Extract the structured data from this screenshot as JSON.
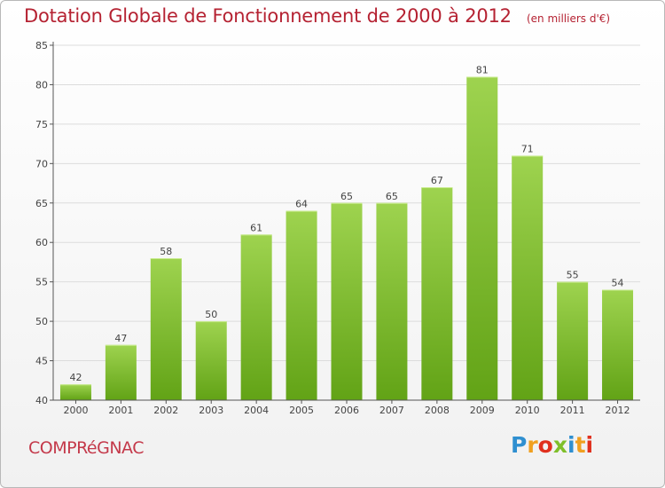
{
  "header": {
    "title": "Dotation Globale de Fonctionnement de 2000 à 2012",
    "unit": "(en milliers d'€)"
  },
  "footer": {
    "city": "COMPRéGNAC",
    "brand": "Proxiti",
    "brand_colors": [
      "#2f8fd0",
      "#f0a020",
      "#e0301e",
      "#7fbf2a",
      "#2f8fd0",
      "#f0a020",
      "#e0301e"
    ]
  },
  "colors": {
    "title": "#b52232",
    "bar_top": "#9ed34f",
    "bar_bottom": "#62a316",
    "axis": "#555555",
    "grid": "#dcdcdc"
  },
  "chart_data": {
    "type": "bar",
    "title": "Dotation Globale de Fonctionnement de 2000 à 2012",
    "subtitle": "(en milliers d'€)",
    "categories": [
      "2000",
      "2001",
      "2002",
      "2003",
      "2004",
      "2005",
      "2006",
      "2007",
      "2008",
      "2009",
      "2010",
      "2011",
      "2012"
    ],
    "values": [
      42,
      47,
      58,
      50,
      61,
      64,
      65,
      65,
      67,
      81,
      71,
      55,
      54
    ],
    "ylim": [
      40,
      85
    ],
    "yticks": [
      40,
      45,
      50,
      55,
      60,
      65,
      70,
      75,
      80,
      85
    ],
    "grid": true,
    "data_labels": true
  }
}
